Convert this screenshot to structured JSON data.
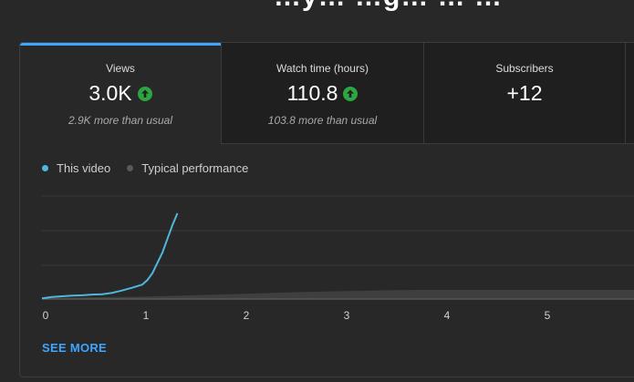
{
  "page_title_fragment": "…y… …g… … …",
  "tabs": [
    {
      "label": "Views",
      "value": "3.0K",
      "subtext": "2.9K more than usual",
      "trend": "up",
      "active": true
    },
    {
      "label": "Watch time (hours)",
      "value": "110.8",
      "subtext": "103.8 more than usual",
      "trend": "up",
      "active": false
    },
    {
      "label": "Subscribers",
      "value": "+12",
      "subtext": "",
      "trend": "",
      "active": false
    },
    {
      "label": "",
      "value": "",
      "subtext": "",
      "trend": "",
      "active": false
    }
  ],
  "legend": {
    "this_video": "This video",
    "typical": "Typical performance"
  },
  "see_more_label": "SEE MORE",
  "colors": {
    "accent": "#3ea6ff",
    "this_video": "#4fb7dd",
    "typical": "#5a5a5a",
    "trend_up": "#2ba640"
  },
  "chart_data": {
    "type": "line",
    "xlabel": "",
    "ylabel": "",
    "x_ticks": [
      "0",
      "1",
      "2",
      "3",
      "4",
      "5"
    ],
    "xlim": [
      0,
      5.9
    ],
    "ylim": [
      0,
      3000
    ],
    "grid": true,
    "legend_position": "top-left",
    "series": [
      {
        "name": "This video",
        "x": [
          0,
          0.1,
          0.2,
          0.3,
          0.4,
          0.5,
          0.6,
          0.7,
          0.8,
          0.9,
          1.0,
          1.05,
          1.1,
          1.15,
          1.2,
          1.25,
          1.3,
          1.35
        ],
        "y": [
          20,
          60,
          80,
          100,
          110,
          130,
          140,
          180,
          250,
          330,
          420,
          550,
          750,
          1050,
          1350,
          1750,
          2150,
          2500
        ]
      },
      {
        "name": "Typical performance",
        "x": [
          0,
          0.5,
          1,
          1.5,
          2,
          2.5,
          3,
          3.5,
          4,
          4.5,
          5,
          5.5,
          5.9
        ],
        "y": [
          30,
          50,
          70,
          110,
          150,
          200,
          230,
          260,
          270,
          270,
          270,
          270,
          270
        ]
      }
    ]
  }
}
